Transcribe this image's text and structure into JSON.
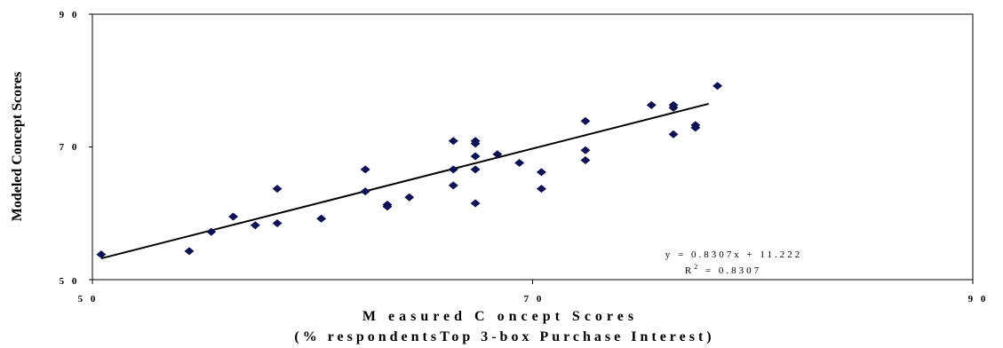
{
  "chart_data": {
    "type": "scatter",
    "title": "",
    "xlabel": "M easured C oncept Scores",
    "xlabel_sub": "(% respondentsTop 3-box Purchase Interest)",
    "ylabel": "Modeled Concept Scores",
    "xlim": [
      50,
      90
    ],
    "ylim": [
      50,
      90
    ],
    "x_ticks": [
      "5 0",
      "7 0",
      "9 0"
    ],
    "y_ticks": [
      "5 0",
      "7 0",
      "9 0"
    ],
    "marker_color": "#101050",
    "points": [
      {
        "x": 50.4,
        "y": 53.8
      },
      {
        "x": 54.4,
        "y": 54.3
      },
      {
        "x": 55.4,
        "y": 57.2
      },
      {
        "x": 56.4,
        "y": 59.5
      },
      {
        "x": 57.4,
        "y": 58.2
      },
      {
        "x": 58.4,
        "y": 58.5
      },
      {
        "x": 58.4,
        "y": 63.7
      },
      {
        "x": 60.4,
        "y": 59.2
      },
      {
        "x": 62.4,
        "y": 66.6
      },
      {
        "x": 62.4,
        "y": 63.3
      },
      {
        "x": 63.4,
        "y": 61.3
      },
      {
        "x": 63.4,
        "y": 61.0
      },
      {
        "x": 64.4,
        "y": 62.4
      },
      {
        "x": 66.4,
        "y": 70.9
      },
      {
        "x": 66.4,
        "y": 66.6
      },
      {
        "x": 66.4,
        "y": 64.2
      },
      {
        "x": 67.4,
        "y": 70.9
      },
      {
        "x": 67.4,
        "y": 70.5
      },
      {
        "x": 67.4,
        "y": 68.6
      },
      {
        "x": 67.4,
        "y": 66.6
      },
      {
        "x": 67.4,
        "y": 61.5
      },
      {
        "x": 68.4,
        "y": 68.9
      },
      {
        "x": 69.4,
        "y": 67.6
      },
      {
        "x": 70.4,
        "y": 66.2
      },
      {
        "x": 70.4,
        "y": 63.7
      },
      {
        "x": 72.4,
        "y": 73.9
      },
      {
        "x": 72.4,
        "y": 69.5
      },
      {
        "x": 72.4,
        "y": 68.0
      },
      {
        "x": 75.4,
        "y": 76.3
      },
      {
        "x": 76.4,
        "y": 76.3
      },
      {
        "x": 76.4,
        "y": 75.9
      },
      {
        "x": 76.4,
        "y": 71.9
      },
      {
        "x": 77.4,
        "y": 73.3
      },
      {
        "x": 77.4,
        "y": 72.9
      },
      {
        "x": 78.4,
        "y": 79.2
      }
    ],
    "trendline": {
      "x": [
        50.4,
        78.0
      ],
      "y": [
        53.2,
        76.5
      ]
    },
    "equation": "y = 0.8307x + 11.222",
    "r_squared": {
      "label": "R",
      "sup": "2",
      "value": " = 0.8307"
    },
    "grid": false,
    "legend": "none"
  }
}
